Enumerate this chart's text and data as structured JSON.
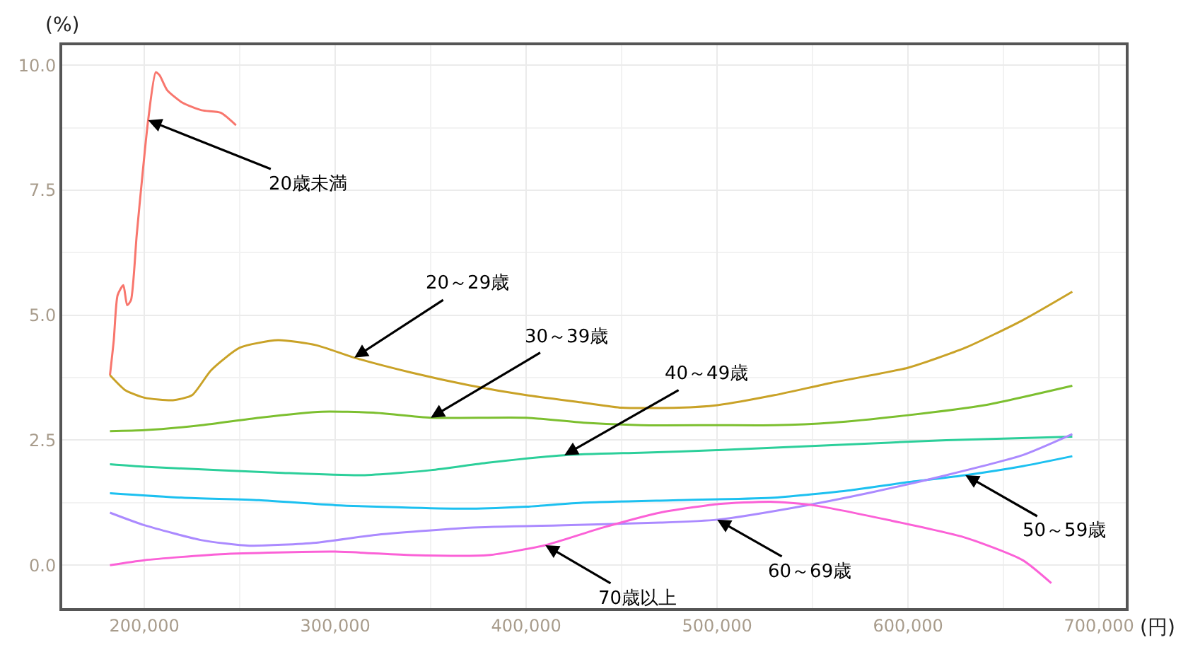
{
  "chart_data": {
    "type": "line",
    "ylabel": "(%)",
    "xlabel": "(円)",
    "xlim": [
      157000,
      714000
    ],
    "ylim": [
      -0.86,
      10.4
    ],
    "xticks": [
      {
        "value": 200000,
        "label": "200,000"
      },
      {
        "value": 300000,
        "label": "300,000"
      },
      {
        "value": 400000,
        "label": "400,000"
      },
      {
        "value": 500000,
        "label": "500,000"
      },
      {
        "value": 600000,
        "label": "600,000"
      },
      {
        "value": 700000,
        "label": "700,000"
      }
    ],
    "yticks": [
      {
        "value": 0,
        "label": "0.0"
      },
      {
        "value": 2.5,
        "label": "2.5"
      },
      {
        "value": 5,
        "label": "5.0"
      },
      {
        "value": 7.5,
        "label": "7.5"
      },
      {
        "value": 10,
        "label": "10.0"
      }
    ],
    "grid": true,
    "marker": "none",
    "line_style": "solid",
    "series": [
      {
        "color": "#f8766d",
        "x": [
          182000,
          184000,
          186000,
          189000,
          191000,
          193000,
          196000,
          199000,
          202000,
          206000,
          208000,
          212000,
          220000,
          230000,
          240000,
          248000
        ],
        "values": [
          3.8,
          4.5,
          5.4,
          5.6,
          5.2,
          5.3,
          6.6,
          7.8,
          8.9,
          9.86,
          9.8,
          9.5,
          9.25,
          9.1,
          9.05,
          8.8
        ]
      },
      {
        "color": "#c9a227",
        "x": [
          182000,
          190000,
          200000,
          215000,
          225000,
          235000,
          250000,
          270000,
          290000,
          310000,
          340000,
          370000,
          400000,
          430000,
          450000,
          480000,
          500000,
          530000,
          560000,
          600000,
          630000,
          660000,
          686000
        ],
        "values": [
          3.8,
          3.5,
          3.35,
          3.3,
          3.4,
          3.9,
          4.35,
          4.5,
          4.4,
          4.15,
          3.85,
          3.6,
          3.4,
          3.25,
          3.15,
          3.15,
          3.2,
          3.4,
          3.65,
          3.95,
          4.35,
          4.9,
          5.47
        ]
      },
      {
        "color": "#7cbf2f",
        "x": [
          182000,
          200000,
          230000,
          260000,
          293000,
          320000,
          350000,
          400000,
          430000,
          460000,
          500000,
          530000,
          560000,
          600000,
          640000,
          686000
        ],
        "values": [
          2.68,
          2.7,
          2.8,
          2.95,
          3.07,
          3.05,
          2.95,
          2.95,
          2.85,
          2.8,
          2.8,
          2.8,
          2.85,
          3.0,
          3.2,
          3.59
        ]
      },
      {
        "color": "#2ccf9a",
        "x": [
          182000,
          200000,
          240000,
          270000,
          314000,
          350000,
          380000,
          420000,
          460000,
          500000,
          560000,
          620000,
          686000
        ],
        "values": [
          2.02,
          1.97,
          1.9,
          1.85,
          1.8,
          1.9,
          2.05,
          2.2,
          2.25,
          2.3,
          2.4,
          2.5,
          2.57
        ]
      },
      {
        "color": "#1cc0f0",
        "x": [
          182000,
          220000,
          260000,
          300000,
          340000,
          371000,
          400000,
          430000,
          480000,
          530000,
          570000,
          600000,
          630000,
          660000,
          686000
        ],
        "values": [
          1.44,
          1.35,
          1.3,
          1.2,
          1.15,
          1.13,
          1.17,
          1.25,
          1.3,
          1.35,
          1.5,
          1.66,
          1.8,
          1.98,
          2.18
        ]
      },
      {
        "color": "#ab8aff",
        "x": [
          182000,
          200000,
          230000,
          255000,
          290000,
          320000,
          370000,
          420000,
          470000,
          500000,
          540000,
          580000,
          620000,
          660000,
          686000
        ],
        "values": [
          1.05,
          0.8,
          0.5,
          0.39,
          0.45,
          0.6,
          0.75,
          0.8,
          0.85,
          0.91,
          1.15,
          1.45,
          1.8,
          2.2,
          2.62
        ]
      },
      {
        "color": "#fb61d7",
        "x": [
          182000,
          200000,
          240000,
          300000,
          340000,
          380000,
          410000,
          440000,
          470000,
          500000,
          528000,
          550000,
          590000,
          630000,
          660000,
          675000
        ],
        "values": [
          0.0,
          0.1,
          0.22,
          0.27,
          0.2,
          0.2,
          0.4,
          0.75,
          1.05,
          1.22,
          1.27,
          1.2,
          0.9,
          0.55,
          0.1,
          -0.36
        ]
      }
    ],
    "annotations": [
      {
        "text": "20歳未満",
        "x": 202000,
        "y": 8.9
      },
      {
        "text": "20～29歳",
        "x": 310000,
        "y": 4.15
      },
      {
        "text": "30～39歳",
        "x": 350000,
        "y": 2.95
      },
      {
        "text": "40～49歳",
        "x": 420000,
        "y": 2.2
      },
      {
        "text": "50～59歳",
        "x": 630000,
        "y": 1.8
      },
      {
        "text": "60～69歳",
        "x": 500000,
        "y": 0.91
      },
      {
        "text": "70歳以上",
        "x": 410000,
        "y": 0.4
      }
    ]
  }
}
